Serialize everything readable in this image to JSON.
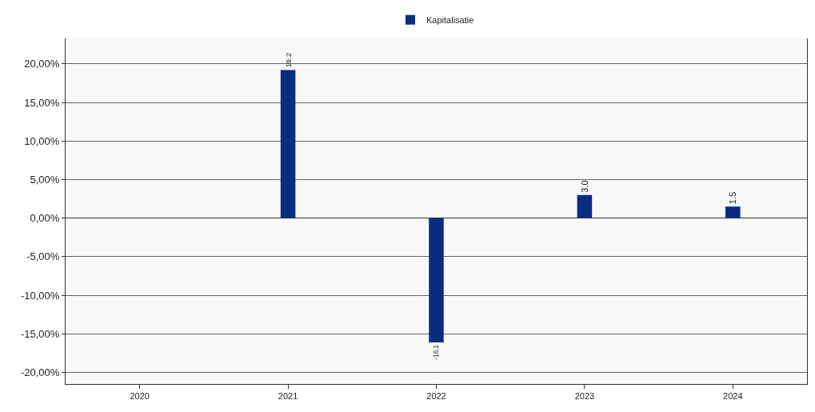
{
  "chart_data": {
    "type": "bar",
    "categories": [
      "2020",
      "2021",
      "2022",
      "2023",
      "2024"
    ],
    "series": [
      {
        "name": "Kapitalisatie",
        "color": "#0a2d82",
        "values": [
          0,
          19.2,
          -16.1,
          3.0,
          1.5
        ],
        "value_labels": [
          null,
          "19.2",
          "-16.1",
          "3.0",
          "1.5"
        ]
      }
    ],
    "ylim": [
      -21.5,
      23.3
    ],
    "yticks": [
      {
        "value": -20,
        "label": "-20,00%"
      },
      {
        "value": -15,
        "label": "-15,00%"
      },
      {
        "value": -10,
        "label": "-10,00%"
      },
      {
        "value": -5,
        "label": "-5,00%"
      },
      {
        "value": 0,
        "label": "0,00%"
      },
      {
        "value": 5,
        "label": "5,00%"
      },
      {
        "value": 10,
        "label": "10,00%"
      },
      {
        "value": 15,
        "label": "15,00%"
      },
      {
        "value": 20,
        "label": "20,00%"
      }
    ],
    "grid": "y",
    "legend": "top"
  }
}
